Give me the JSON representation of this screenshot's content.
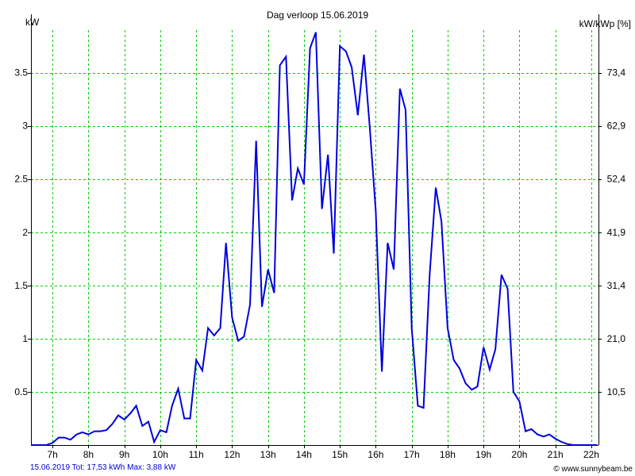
{
  "chart_data": {
    "type": "line",
    "title": "Dag  verloop 15.06.2019",
    "ylabel_left": "kW",
    "ylabel_right": "kW/kWp [%]",
    "footer_left": "15.06.2019 Tot: 17,53 kWh Max: 3,88 kW",
    "footer_right": "© www.sunnybeam.be",
    "xlim": [
      6.4,
      22.2
    ],
    "ylim": [
      0,
      3.9
    ],
    "grid": true,
    "x_ticks": [
      {
        "value": 7,
        "label": "7h"
      },
      {
        "value": 8,
        "label": "8h"
      },
      {
        "value": 9,
        "label": "9h"
      },
      {
        "value": 10,
        "label": "10h"
      },
      {
        "value": 11,
        "label": "11h"
      },
      {
        "value": 12,
        "label": "12h"
      },
      {
        "value": 13,
        "label": "13h"
      },
      {
        "value": 14,
        "label": "14h"
      },
      {
        "value": 15,
        "label": "15h"
      },
      {
        "value": 16,
        "label": "16h"
      },
      {
        "value": 17,
        "label": "17h"
      },
      {
        "value": 18,
        "label": "18h"
      },
      {
        "value": 19,
        "label": "19h"
      },
      {
        "value": 20,
        "label": "20h"
      },
      {
        "value": 21,
        "label": "21h"
      },
      {
        "value": 22,
        "label": "22h"
      }
    ],
    "y_ticks_left": [
      {
        "value": 0.5,
        "label": "0.5"
      },
      {
        "value": 1.0,
        "label": "1"
      },
      {
        "value": 1.5,
        "label": "1.5"
      },
      {
        "value": 2.0,
        "label": "2"
      },
      {
        "value": 2.5,
        "label": "2.5"
      },
      {
        "value": 3.0,
        "label": "3"
      },
      {
        "value": 3.5,
        "label": "3.5"
      }
    ],
    "y_ticks_right": [
      {
        "value": 0.5,
        "label": "10,5"
      },
      {
        "value": 1.0,
        "label": "21,0"
      },
      {
        "value": 1.5,
        "label": "31,4"
      },
      {
        "value": 2.0,
        "label": "41,9"
      },
      {
        "value": 2.5,
        "label": "52,4"
      },
      {
        "value": 3.0,
        "label": "62,9"
      },
      {
        "value": 3.5,
        "label": "73,4"
      }
    ],
    "colors": {
      "line": "#0000dd",
      "grid": "#00cc00",
      "axis": "#000000",
      "footer_left": "#0000cc"
    },
    "series": [
      {
        "x": [
          6.4,
          6.83,
          7.0,
          7.17,
          7.33,
          7.5,
          7.67,
          7.83,
          8.0,
          8.17,
          8.33,
          8.5,
          8.67,
          8.83,
          9.0,
          9.17,
          9.33,
          9.5,
          9.67,
          9.83,
          10.0,
          10.17,
          10.33,
          10.5,
          10.67,
          10.83,
          11.0,
          11.17,
          11.33,
          11.5,
          11.67,
          11.83,
          12.0,
          12.17,
          12.33,
          12.5,
          12.67,
          12.83,
          13.0,
          13.17,
          13.33,
          13.5,
          13.67,
          13.83,
          14.0,
          14.17,
          14.33,
          14.5,
          14.67,
          14.83,
          15.0,
          15.17,
          15.33,
          15.5,
          15.67,
          15.83,
          16.0,
          16.17,
          16.33,
          16.5,
          16.67,
          16.83,
          17.0,
          17.17,
          17.33,
          17.5,
          17.67,
          17.83,
          18.0,
          18.17,
          18.33,
          18.5,
          18.67,
          18.83,
          19.0,
          19.17,
          19.33,
          19.5,
          19.67,
          19.83,
          20.0,
          20.17,
          20.33,
          20.5,
          20.67,
          20.83,
          21.0,
          21.17,
          21.33,
          21.5,
          21.67,
          21.83,
          22.17
        ],
        "y": [
          0,
          0,
          0.02,
          0.07,
          0.07,
          0.05,
          0.1,
          0.12,
          0.1,
          0.13,
          0.13,
          0.14,
          0.2,
          0.28,
          0.24,
          0.3,
          0.37,
          0.18,
          0.22,
          0.03,
          0.14,
          0.12,
          0.37,
          0.53,
          0.25,
          0.25,
          0.8,
          0.7,
          1.1,
          1.03,
          1.1,
          1.9,
          1.2,
          0.98,
          1.02,
          1.32,
          2.86,
          1.3,
          1.65,
          1.43,
          3.57,
          3.65,
          2.3,
          2.6,
          2.45,
          3.73,
          3.88,
          2.22,
          2.73,
          1.8,
          3.75,
          3.7,
          3.55,
          3.1,
          3.67,
          3.0,
          2.2,
          0.69,
          1.9,
          1.65,
          3.35,
          3.15,
          1.1,
          0.37,
          0.35,
          1.6,
          2.42,
          2.1,
          1.1,
          0.8,
          0.72,
          0.58,
          0.52,
          0.55,
          0.92,
          0.71,
          0.9,
          1.6,
          1.47,
          0.5,
          0.41,
          0.13,
          0.15,
          0.1,
          0.08,
          0.1,
          0.06,
          0.03,
          0.01,
          0,
          0,
          0,
          0
        ]
      }
    ]
  }
}
